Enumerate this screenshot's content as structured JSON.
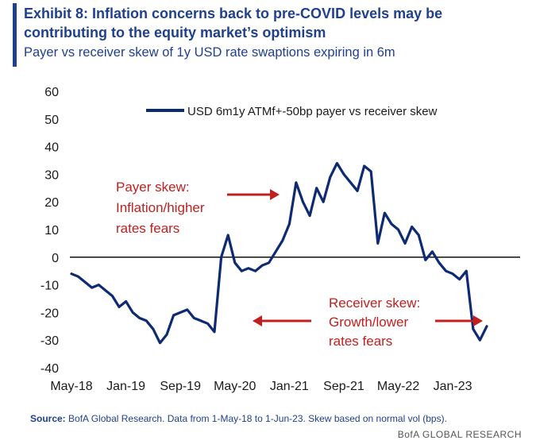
{
  "header": {
    "title": "Exhibit 8: Inflation concerns back to pre-COVID levels may be contributing to the equity market’s optimism",
    "subtitle": "Payer vs receiver skew of 1y USD rate swaptions expiring in 6m"
  },
  "footer": {
    "source_label": "Source:",
    "source_text": "BofA Global Research. Data from 1-May-18 to 1-Jun-23. Skew based on normal vol (bps).",
    "brand": "BofA GLOBAL RESEARCH"
  },
  "colors": {
    "accent": "#1f3f8f",
    "series": "#0d2a73",
    "arrow": "#c0201f",
    "annotation": "#c0201f"
  },
  "chart_data": {
    "type": "line",
    "title": "",
    "xlabel": "",
    "ylabel": "",
    "ylim": [
      -40,
      60
    ],
    "yticks": [
      60,
      50,
      40,
      30,
      20,
      10,
      0,
      -10,
      -20,
      -30,
      -40
    ],
    "xticks": [
      "May-18",
      "Jan-19",
      "Sep-19",
      "May-20",
      "Jan-21",
      "Sep-21",
      "May-22",
      "Jan-23"
    ],
    "legend": "top-center",
    "zero_line": true,
    "grid": false,
    "annotations": [
      {
        "text": [
          "Payer skew:",
          "Inflation/higher",
          "rates fears"
        ],
        "arrow": "right"
      },
      {
        "text": [
          "Receiver skew:",
          "Growth/lower",
          "rates fears"
        ],
        "arrow": "both"
      }
    ],
    "series": [
      {
        "name": "USD 6m1y ATMf+-50bp payer vs receiver skew",
        "x": [
          "2018-05",
          "2018-06",
          "2018-07",
          "2018-08",
          "2018-09",
          "2018-10",
          "2018-11",
          "2018-12",
          "2019-01",
          "2019-02",
          "2019-03",
          "2019-04",
          "2019-05",
          "2019-06",
          "2019-07",
          "2019-08",
          "2019-09",
          "2019-10",
          "2019-11",
          "2019-12",
          "2020-01",
          "2020-02",
          "2020-03",
          "2020-04",
          "2020-05",
          "2020-06",
          "2020-07",
          "2020-08",
          "2020-09",
          "2020-10",
          "2020-11",
          "2020-12",
          "2021-01",
          "2021-02",
          "2021-03",
          "2021-04",
          "2021-05",
          "2021-06",
          "2021-07",
          "2021-08",
          "2021-09",
          "2021-10",
          "2021-11",
          "2021-12",
          "2022-01",
          "2022-02",
          "2022-03",
          "2022-04",
          "2022-05",
          "2022-06",
          "2022-07",
          "2022-08",
          "2022-09",
          "2022-10",
          "2022-11",
          "2022-12",
          "2023-01",
          "2023-02",
          "2023-03",
          "2023-04",
          "2023-05",
          "2023-06"
        ],
        "values": [
          -6,
          -7,
          -9,
          -11,
          -10,
          -12,
          -14,
          -18,
          -16,
          -20,
          -22,
          -23,
          -26,
          -31,
          -28,
          -21,
          -20,
          -19,
          -22,
          -23,
          -24,
          -27,
          0,
          8,
          -2,
          -5,
          -4,
          -5,
          -3,
          -2,
          2,
          6,
          12,
          27,
          20,
          15,
          25,
          20,
          29,
          34,
          30,
          27,
          24,
          33,
          31,
          5,
          16,
          12,
          10,
          5,
          11,
          8,
          -1,
          2,
          -2,
          -5,
          -6,
          -8,
          -5,
          -26,
          -30,
          -25
        ]
      }
    ]
  }
}
